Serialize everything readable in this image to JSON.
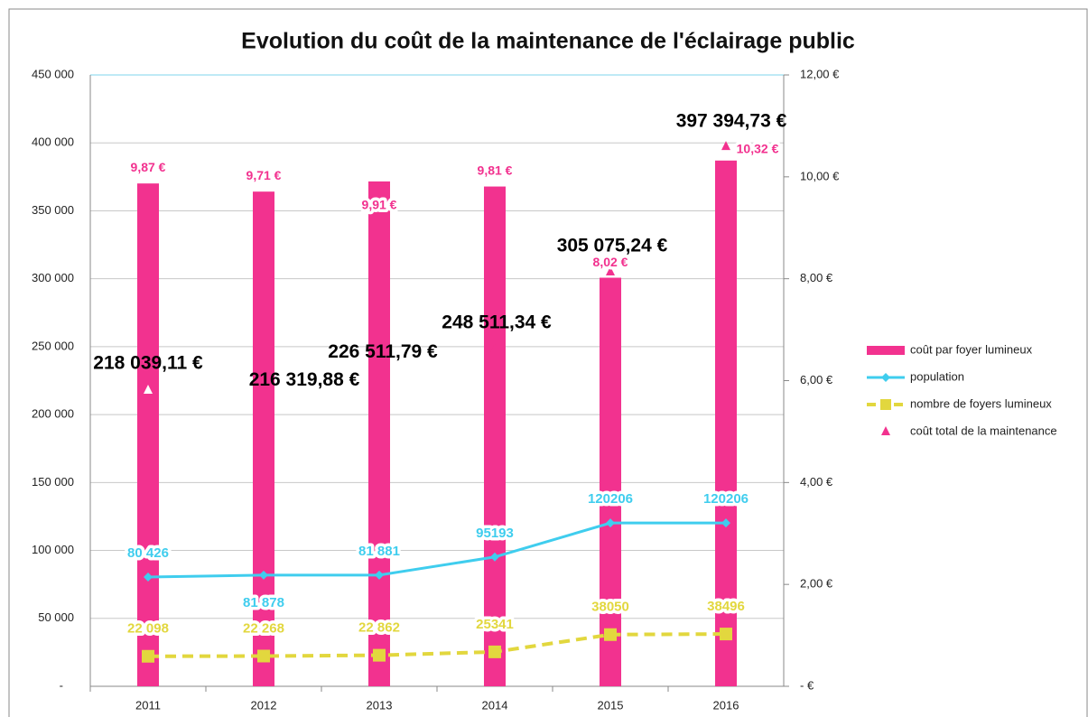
{
  "chart_data": {
    "type": "bar",
    "title": "Evolution du coût de la maintenance de l'éclairage public",
    "categories": [
      "2011",
      "2012",
      "2013",
      "2014",
      "2015",
      "2016"
    ],
    "series": [
      {
        "name": "coût par foyer lumineux",
        "type": "bar",
        "axis": "y2",
        "color": "#f2328f",
        "values": [
          9.87,
          9.71,
          9.91,
          9.81,
          8.02,
          10.32
        ],
        "value_labels": [
          "9,87 €",
          "9,71 €",
          "9,91 €",
          "9,81 €",
          "8,02 €",
          "10,32 €"
        ]
      },
      {
        "name": "population",
        "type": "line",
        "color": "#3fcdee",
        "values": [
          80426,
          81878,
          81881,
          95193,
          120206,
          120206
        ],
        "value_labels": [
          "80 426",
          "81 878",
          "81 881",
          "95193",
          "120206",
          "120206"
        ]
      },
      {
        "name": "nombre de foyers lumineux",
        "type": "line",
        "dashed": true,
        "color": "#e2d73e",
        "values": [
          22098,
          22268,
          22862,
          25341,
          38050,
          38496
        ],
        "value_labels": [
          "22 098",
          "22 268",
          "22 862",
          "25341",
          "38050",
          "38496"
        ]
      },
      {
        "name": "coût total de la maintenance",
        "type": "scatter",
        "marker": "triangle",
        "color": "#f2328f",
        "values": [
          218039.11,
          216319.88,
          226511.79,
          248511.34,
          305075.24,
          397394.73
        ],
        "value_labels": [
          "218 039,11 €",
          "216 319,88 €",
          "226 511,79 €",
          "248 511,34 €",
          "305 075,24 €",
          "397 394,73 €"
        ]
      }
    ],
    "ylim": [
      0,
      450000
    ],
    "yticks": [
      {
        "value": 0,
        "label": "-"
      },
      {
        "value": 50000,
        "label": "50 000"
      },
      {
        "value": 100000,
        "label": "100 000"
      },
      {
        "value": 150000,
        "label": "150 000"
      },
      {
        "value": 200000,
        "label": "200 000"
      },
      {
        "value": 250000,
        "label": "250 000"
      },
      {
        "value": 300000,
        "label": "300 000"
      },
      {
        "value": 350000,
        "label": "350 000"
      },
      {
        "value": 400000,
        "label": "400 000"
      },
      {
        "value": 450000,
        "label": "450 000"
      }
    ],
    "y2lim": [
      0,
      12
    ],
    "y2ticks": [
      {
        "value": 0,
        "label": "- €"
      },
      {
        "value": 2,
        "label": "2,00 €"
      },
      {
        "value": 4,
        "label": "4,00 €"
      },
      {
        "value": 6,
        "label": "6,00 €"
      },
      {
        "value": 8,
        "label": "8,00 €"
      },
      {
        "value": 10,
        "label": "10,00 €"
      },
      {
        "value": 12,
        "label": "12,00 €"
      }
    ],
    "grid": true,
    "legend": "right"
  }
}
